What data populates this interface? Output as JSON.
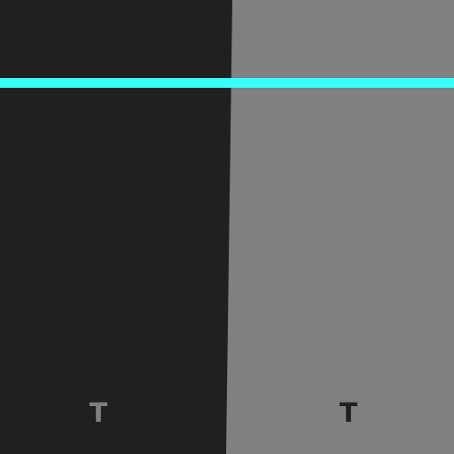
{
  "panels": {
    "left": {
      "glyph": "T",
      "background": "#202020",
      "glyph_color": "#7f7f7f"
    },
    "right": {
      "glyph": "T",
      "background": "#808080",
      "glyph_color": "#202020"
    }
  },
  "scanline": {
    "color": "#33ffff"
  }
}
